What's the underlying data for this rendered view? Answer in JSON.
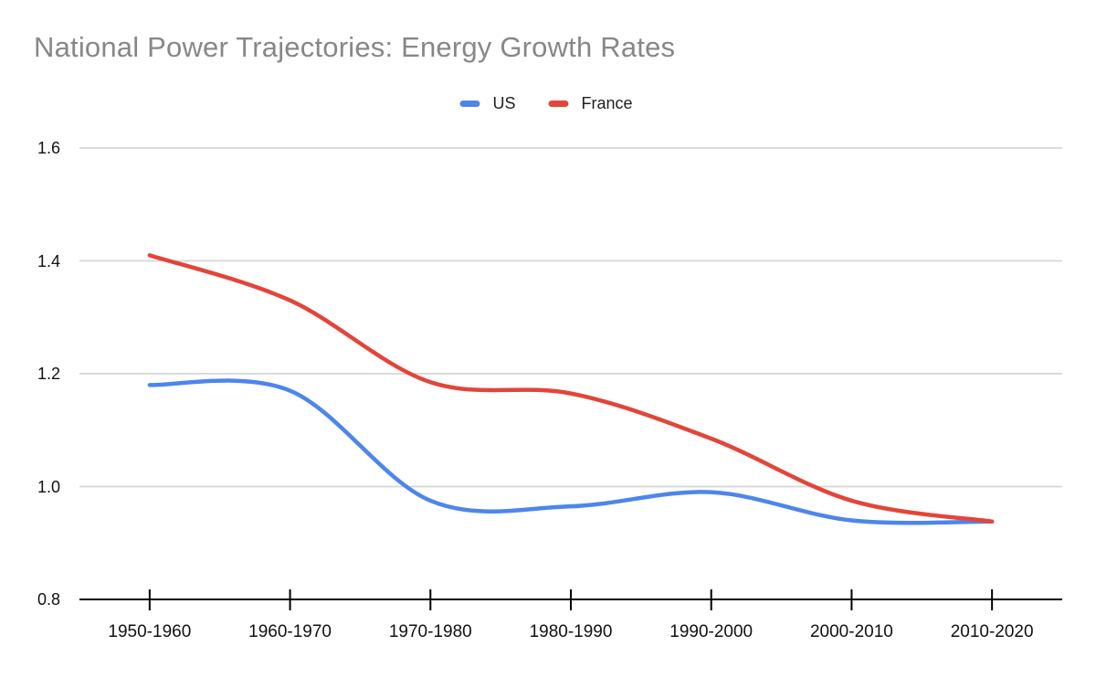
{
  "page": {
    "background": "#ffffff"
  },
  "chart": {
    "title": "National Power Trajectories: Energy Growth Rates",
    "title_color": "#878787"
  },
  "chart_data": {
    "type": "line",
    "title": "National Power Trajectories: Energy Growth Rates",
    "categories": [
      "1950-1960",
      "1960-1970",
      "1970-1980",
      "1980-1990",
      "1990-2000",
      "2000-2010",
      "2010-2020"
    ],
    "series": [
      {
        "name": "US",
        "color": "#4d86eb",
        "values": [
          1.18,
          1.17,
          0.975,
          0.965,
          0.99,
          0.94,
          0.938
        ]
      },
      {
        "name": "France",
        "color": "#e3453a",
        "values": [
          1.41,
          1.33,
          1.185,
          1.165,
          1.085,
          0.975,
          0.938
        ]
      }
    ],
    "xlabel": "",
    "ylabel": "",
    "ylim": [
      0.8,
      1.6
    ],
    "y_ticks": [
      0.8,
      1.0,
      1.2,
      1.4,
      1.6
    ],
    "y_tick_labels": [
      "0.8",
      "1.0",
      "1.2",
      "1.4",
      "1.6"
    ],
    "grid": true,
    "legend_position": "top",
    "line_smoothing": true
  },
  "colors": {
    "gridline": "#d6d6d6",
    "axis_line": "#000000",
    "tick_mark": "#000000",
    "axis_label_text": "#111111",
    "legend_text": "#1f1f1f"
  }
}
